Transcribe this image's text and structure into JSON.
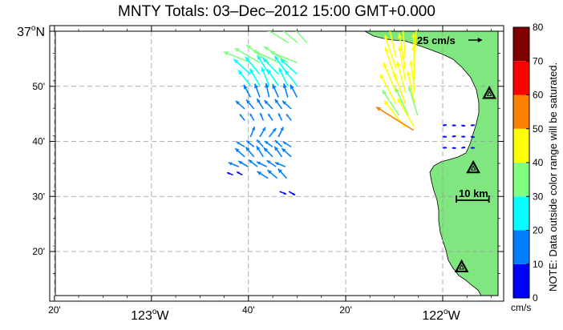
{
  "title": "MNTY Totals: 03–Dec–2012 15:00 GMT+0.000",
  "colors": {
    "land": "#80e680",
    "grid": "#999999",
    "colormap": [
      "#0000ff",
      "#0080ff",
      "#00ffff",
      "#80ff80",
      "#ffff00",
      "#ff8000",
      "#ff0000",
      "#800000"
    ]
  },
  "map": {
    "lon_range": [
      -123.33,
      -121.81
    ],
    "lat_range": [
      36.2,
      37.0
    ],
    "lon_ticks": [
      {
        "lon": -123.333,
        "label": "20'",
        "major": false
      },
      {
        "lon": -123.0,
        "label": "123",
        "major": true
      },
      {
        "lon": -122.667,
        "label": "40'",
        "major": false
      },
      {
        "lon": -122.333,
        "label": "20'",
        "major": false
      },
      {
        "lon": -122.0,
        "label": "122",
        "major": true
      }
    ],
    "lat_ticks": [
      {
        "lat": 37.0,
        "label": "37",
        "major": true
      },
      {
        "lat": 36.8333,
        "label": "50'",
        "major": false
      },
      {
        "lat": 36.6667,
        "label": "40'",
        "major": false
      },
      {
        "lat": 36.5,
        "label": "30'",
        "major": false
      },
      {
        "lat": 36.3333,
        "label": "20'",
        "major": false
      }
    ],
    "degree_symbol": "o",
    "lon_hemisphere": "W",
    "lat_hemisphere": "N"
  },
  "scale": {
    "vector_label": "25 cm/s",
    "vector_speed": 25,
    "distance_label": "10 km",
    "distance_km": 10
  },
  "colorbar": {
    "min": 0,
    "max": 80,
    "ticks": [
      "0",
      "10",
      "20",
      "30",
      "40",
      "50",
      "60",
      "70",
      "80"
    ],
    "unit": "cm/s",
    "note": "NOTE: Data outside color range will be saturated."
  },
  "stations": [
    {
      "lon": -121.84,
      "lat": 36.81
    },
    {
      "lon": -121.895,
      "lat": 36.585
    },
    {
      "lon": -121.935,
      "lat": 36.285
    }
  ],
  "vector_groups": [
    {
      "lon0": -122.53,
      "lat0": 36.965,
      "nlon": 3,
      "nlat": 1,
      "speed": 34,
      "dir": 310
    },
    {
      "lon0": -122.66,
      "lat0": 36.905,
      "nlon": 6,
      "nlat": 1,
      "speed": 36,
      "dir": 300
    },
    {
      "lon0": -122.66,
      "lat0": 36.87,
      "nlon": 6,
      "nlat": 1,
      "speed": 28,
      "dir": 320
    },
    {
      "lon0": -122.66,
      "lat0": 36.835,
      "nlon": 6,
      "nlat": 1,
      "speed": 25,
      "dir": 330
    },
    {
      "lon0": -122.66,
      "lat0": 36.8,
      "nlon": 6,
      "nlat": 1,
      "speed": 18,
      "dir": 340
    },
    {
      "lon0": -122.68,
      "lat0": 36.765,
      "nlon": 6,
      "nlat": 1,
      "speed": 15,
      "dir": 320
    },
    {
      "lon0": -122.68,
      "lat0": 36.73,
      "nlon": 6,
      "nlat": 1,
      "speed": 10,
      "dir": 330
    },
    {
      "lon0": -122.66,
      "lat0": 36.68,
      "nlon": 4,
      "nlat": 1,
      "speed": 14,
      "dir": 30
    },
    {
      "lon0": -122.68,
      "lat0": 36.65,
      "nlon": 6,
      "nlat": 1,
      "speed": 12,
      "dir": 310
    },
    {
      "lon0": -122.68,
      "lat0": 36.62,
      "nlon": 6,
      "nlat": 1,
      "speed": 16,
      "dir": 320
    },
    {
      "lon0": -122.7,
      "lat0": 36.59,
      "nlon": 6,
      "nlat": 1,
      "speed": 14,
      "dir": 300
    },
    {
      "lon0": -122.72,
      "lat0": 36.565,
      "nlon": 2,
      "nlat": 1,
      "speed": 8,
      "dir": 300
    },
    {
      "lon0": -122.6,
      "lat0": 36.555,
      "nlon": 3,
      "nlat": 1,
      "speed": 16,
      "dir": 310
    },
    {
      "lon0": -122.56,
      "lat0": 36.515,
      "nlon": 2,
      "nlat": 1,
      "speed": 9,
      "dir": 120
    },
    {
      "lon0": -122.16,
      "lat0": 36.92,
      "nlon": 3,
      "nlat": 1,
      "speed": 42,
      "dir": 355
    },
    {
      "lon0": -122.16,
      "lat0": 36.885,
      "nlon": 3,
      "nlat": 1,
      "speed": 45,
      "dir": 350
    },
    {
      "lon0": -122.16,
      "lat0": 36.85,
      "nlon": 3,
      "nlat": 1,
      "speed": 44,
      "dir": 350
    },
    {
      "lon0": -122.16,
      "lat0": 36.815,
      "nlon": 3,
      "nlat": 1,
      "speed": 40,
      "dir": 345
    },
    {
      "lon0": -122.16,
      "lat0": 36.78,
      "nlon": 3,
      "nlat": 1,
      "speed": 42,
      "dir": 340
    },
    {
      "lon0": -122.15,
      "lat0": 36.745,
      "nlon": 3,
      "nlat": 1,
      "speed": 38,
      "dir": 335
    },
    {
      "lon0": -122.13,
      "lat0": 36.71,
      "nlon": 2,
      "nlat": 1,
      "speed": 42,
      "dir": 330
    },
    {
      "lon0": -122.1,
      "lat0": 36.7,
      "nlon": 1,
      "nlat": 1,
      "speed": 55,
      "dir": 310
    },
    {
      "lon0": -122.0,
      "lat0": 36.715,
      "nlon": 4,
      "nlat": 3,
      "speed": 5,
      "dir": 90
    }
  ]
}
